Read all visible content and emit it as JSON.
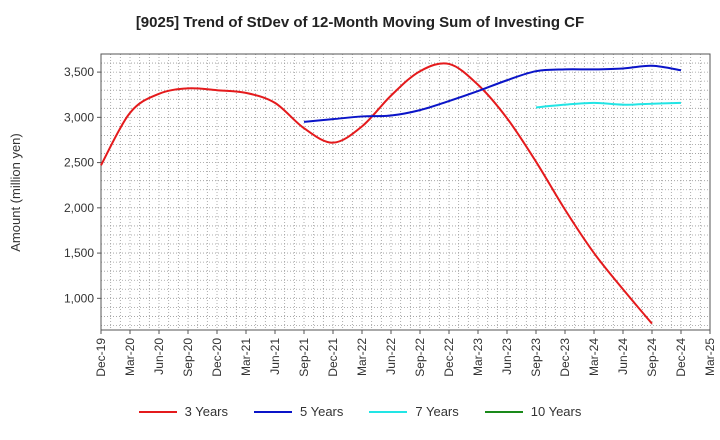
{
  "chart_data": {
    "type": "line",
    "title": "[9025]  Trend of StDev of 12-Month Moving Sum of Investing CF",
    "ylabel": "Amount (million yen)",
    "xlabel": "",
    "ylim": [
      650,
      3700
    ],
    "yticks": [
      1000,
      1500,
      2000,
      2500,
      3000,
      3500
    ],
    "ytick_labels": [
      "1,000",
      "1,500",
      "2,000",
      "2,500",
      "3,000",
      "3,500"
    ],
    "x_labels": [
      "Dec-19",
      "Mar-20",
      "Jun-20",
      "Sep-20",
      "Dec-20",
      "Mar-21",
      "Jun-21",
      "Sep-21",
      "Dec-21",
      "Mar-22",
      "Jun-22",
      "Sep-22",
      "Dec-22",
      "Mar-23",
      "Jun-23",
      "Sep-23",
      "Dec-23",
      "Mar-24",
      "Jun-24",
      "Sep-24",
      "Dec-24",
      "Mar-25"
    ],
    "grid": true,
    "legend_position": "bottom",
    "series": [
      {
        "name": "3 Years",
        "color": "#e41a1c",
        "start_index": 0,
        "values": [
          2470,
          3050,
          3260,
          3320,
          3300,
          3270,
          3160,
          2880,
          2720,
          2900,
          3240,
          3510,
          3590,
          3360,
          2990,
          2510,
          1980,
          1500,
          1100,
          720
        ]
      },
      {
        "name": "5 Years",
        "color": "#0a14c8",
        "start_index": 7,
        "values": [
          2950,
          2980,
          3010,
          3020,
          3080,
          3180,
          3290,
          3410,
          3510,
          3530,
          3530,
          3540,
          3570,
          3520
        ]
      },
      {
        "name": "7 Years",
        "color": "#22e5e5",
        "start_index": 15,
        "values": [
          3110,
          3140,
          3160,
          3140,
          3150,
          3160
        ]
      },
      {
        "name": "10 Years",
        "color": "#1a8a1a",
        "start_index": 0,
        "values": []
      }
    ]
  }
}
